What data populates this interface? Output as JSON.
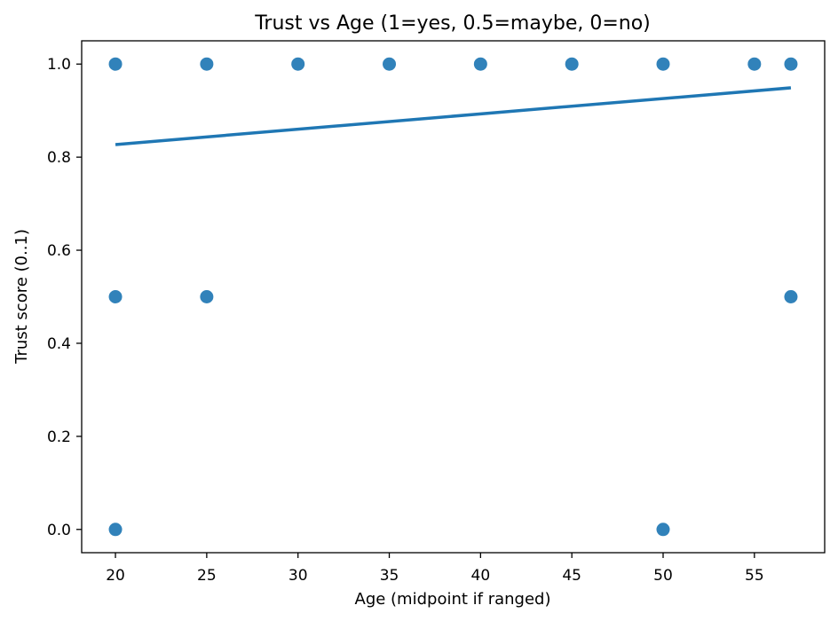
{
  "chart_data": {
    "type": "scatter",
    "title": "Trust vs Age (1=yes, 0.5=maybe, 0=no)",
    "xlabel": "Age (midpoint if ranged)",
    "ylabel": "Trust score (0..1)",
    "xlim": [
      18.15,
      58.85
    ],
    "ylim": [
      -0.05,
      1.05
    ],
    "xticks": [
      20,
      25,
      30,
      35,
      40,
      45,
      50,
      55
    ],
    "yticks": [
      0.0,
      0.2,
      0.4,
      0.6,
      0.8,
      1.0
    ],
    "grid": false,
    "series": [
      {
        "type": "scatter",
        "color": "#1f77b4",
        "points": [
          {
            "x": 20,
            "y": 1.0
          },
          {
            "x": 25,
            "y": 1.0
          },
          {
            "x": 30,
            "y": 1.0
          },
          {
            "x": 35,
            "y": 1.0
          },
          {
            "x": 40,
            "y": 1.0
          },
          {
            "x": 45,
            "y": 1.0
          },
          {
            "x": 50,
            "y": 1.0
          },
          {
            "x": 55,
            "y": 1.0
          },
          {
            "x": 57,
            "y": 1.0
          },
          {
            "x": 20,
            "y": 0.5
          },
          {
            "x": 25,
            "y": 0.5
          },
          {
            "x": 57,
            "y": 0.5
          },
          {
            "x": 20,
            "y": 0.0
          },
          {
            "x": 50,
            "y": 0.0
          }
        ]
      },
      {
        "type": "line",
        "color": "#1f77b4",
        "points": [
          {
            "x": 20,
            "y": 0.827
          },
          {
            "x": 57,
            "y": 0.949
          }
        ]
      }
    ]
  }
}
